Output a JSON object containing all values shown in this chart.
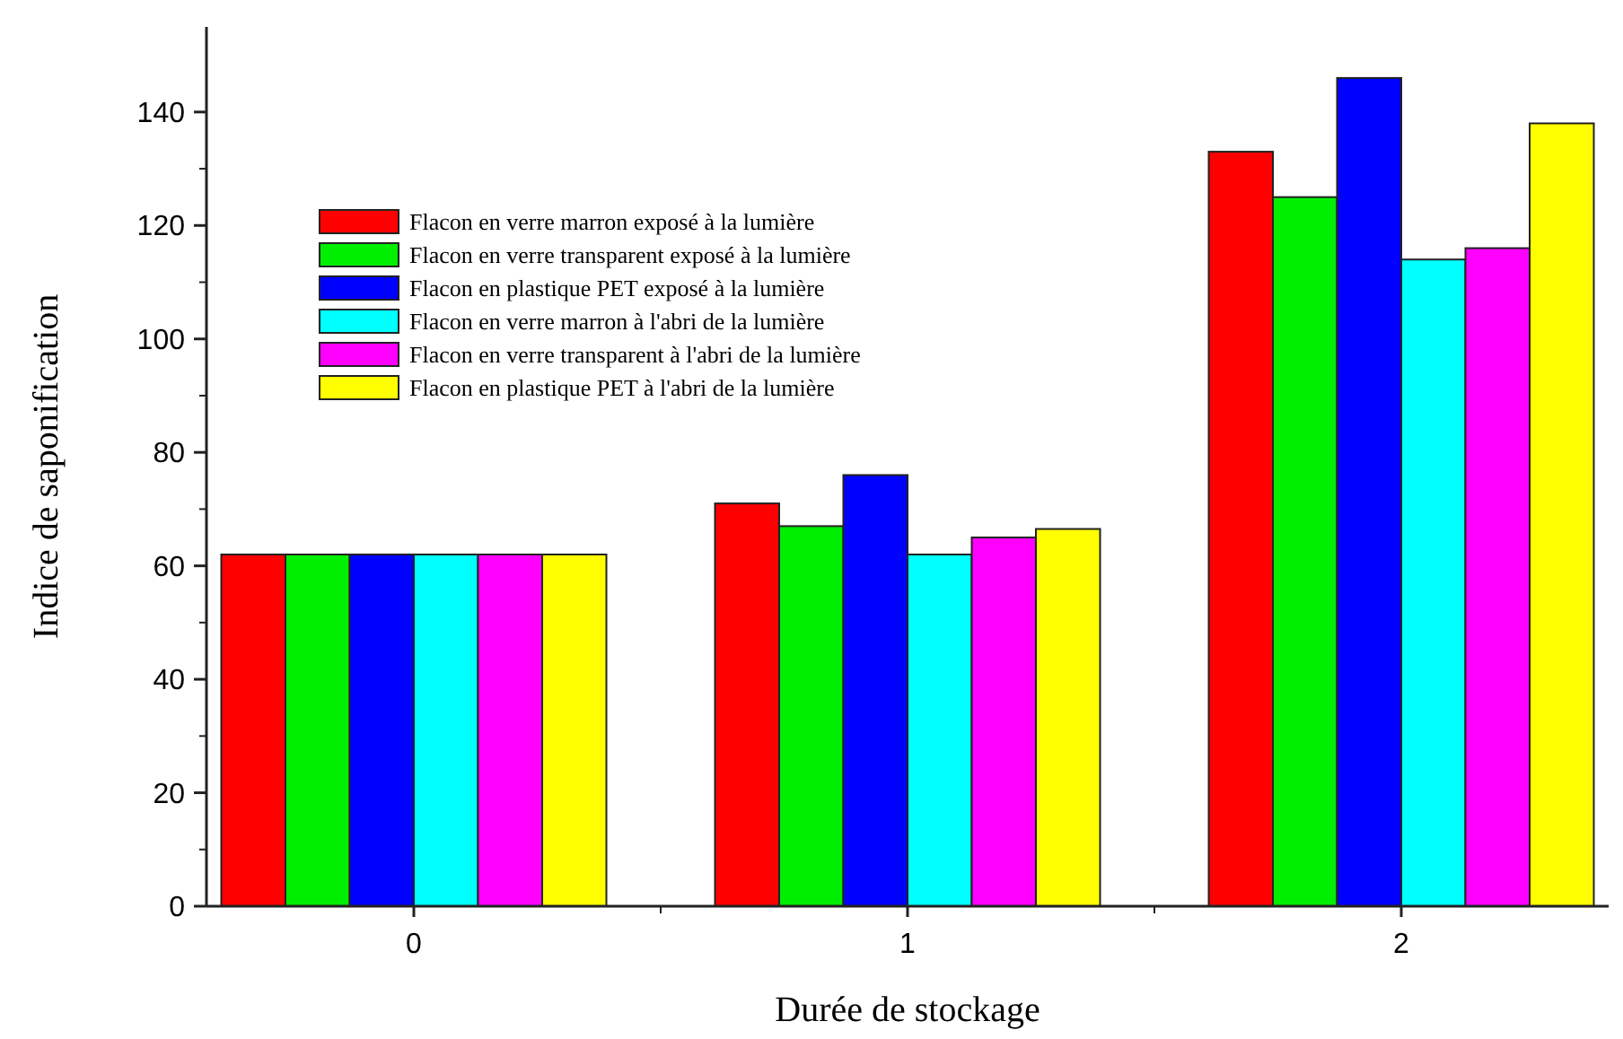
{
  "chart_data": {
    "type": "bar",
    "xlabel": "Durée de stockage",
    "ylabel": "Indice de saponification",
    "categories": [
      "0",
      "1",
      "2"
    ],
    "series": [
      {
        "name": "Flacon en verre marron exposé à la lumière",
        "color": "#ff0000",
        "values": [
          62,
          71,
          133
        ]
      },
      {
        "name": "Flacon en verre transparent exposé à la lumière",
        "color": "#00ee00",
        "values": [
          62,
          67,
          125
        ]
      },
      {
        "name": "Flacon en plastique PET exposé à la lumière",
        "color": "#0000ff",
        "values": [
          62,
          76,
          146
        ]
      },
      {
        "name": "Flacon en verre marron à l'abri de la lumière",
        "color": "#00ffff",
        "values": [
          62,
          62,
          114
        ]
      },
      {
        "name": "Flacon en verre transparent à l'abri de la lumière",
        "color": "#ff00ff",
        "values": [
          62,
          65,
          116
        ]
      },
      {
        "name": "Flacon en plastique PET à l'abri de la lumière",
        "color": "#ffff00",
        "values": [
          62,
          66.5,
          138
        ]
      }
    ],
    "ylim": [
      0,
      155
    ],
    "yticks": [
      0,
      20,
      40,
      60,
      80,
      100,
      120,
      140
    ],
    "grid": false,
    "legend": "top left"
  }
}
